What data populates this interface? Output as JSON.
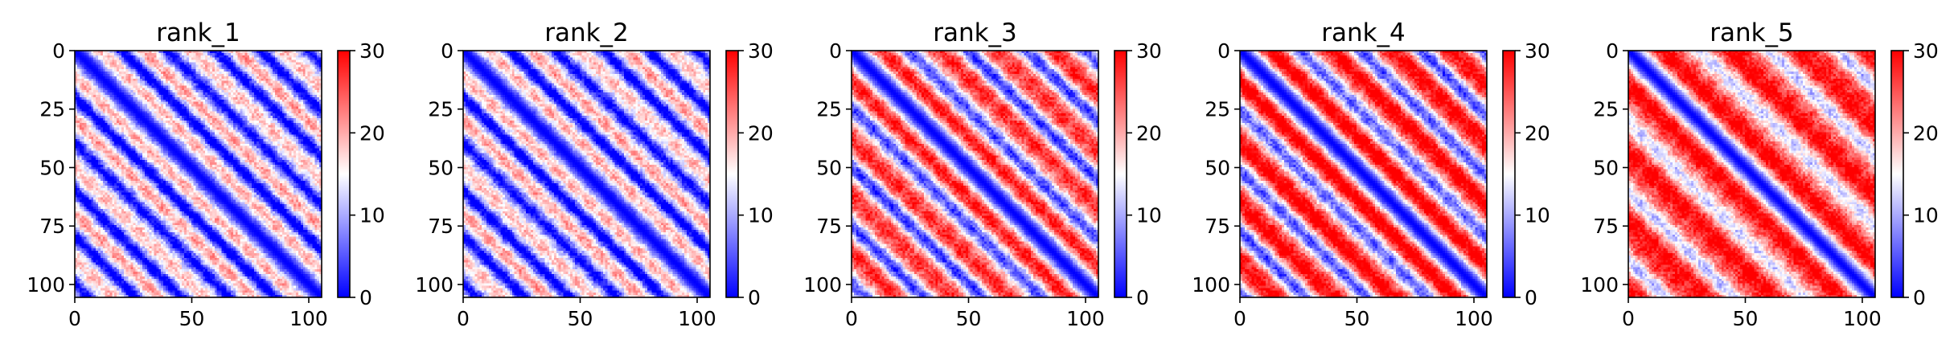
{
  "chart_data": [
    {
      "type": "heatmap",
      "title": "rank_1",
      "matrix_size": 106,
      "xticks": [
        0,
        50,
        100
      ],
      "yticks": [
        0,
        25,
        50,
        75,
        100
      ],
      "colorbar": {
        "min": 0,
        "max": 30,
        "ticks": [
          0,
          10,
          20,
          30
        ],
        "colors": [
          "#0000ff",
          "#ffffff",
          "#ff0000"
        ]
      },
      "pattern": {
        "period": 20,
        "stripe_width": 2.2,
        "diag_width": 3.5,
        "mean": 13,
        "amp": 6.5
      }
    },
    {
      "type": "heatmap",
      "title": "rank_2",
      "matrix_size": 106,
      "xticks": [
        0,
        50,
        100
      ],
      "yticks": [
        0,
        25,
        50,
        75,
        100
      ],
      "colorbar": {
        "min": 0,
        "max": 30,
        "ticks": [
          0,
          10,
          20,
          30
        ],
        "colors": [
          "#0000ff",
          "#ffffff",
          "#ff0000"
        ]
      },
      "pattern": {
        "period": 20,
        "stripe_width": 2.2,
        "diag_width": 3.5,
        "mean": 13,
        "amp": 6.5
      }
    },
    {
      "type": "heatmap",
      "title": "rank_3",
      "matrix_size": 106,
      "xticks": [
        0,
        50,
        100
      ],
      "yticks": [
        0,
        25,
        50,
        75,
        100
      ],
      "colorbar": {
        "min": 0,
        "max": 30,
        "ticks": [
          0,
          10,
          20,
          30
        ],
        "colors": [
          "#0000ff",
          "#ffffff",
          "#ff0000"
        ]
      },
      "pattern": {
        "period": 25,
        "stripe_width": 3.0,
        "diag_width": 4.0,
        "mean": 20,
        "amp": 8
      }
    },
    {
      "type": "heatmap",
      "title": "rank_4",
      "matrix_size": 106,
      "xticks": [
        0,
        50,
        100
      ],
      "yticks": [
        0,
        25,
        50,
        75,
        100
      ],
      "colorbar": {
        "min": 0,
        "max": 30,
        "ticks": [
          0,
          10,
          20,
          30
        ],
        "colors": [
          "#0000ff",
          "#ffffff",
          "#ff0000"
        ]
      },
      "pattern": {
        "period": 26,
        "stripe_width": 3.2,
        "diag_width": 4.0,
        "mean": 22,
        "amp": 9
      }
    },
    {
      "type": "heatmap",
      "title": "rank_5",
      "matrix_size": 106,
      "xticks": [
        0,
        50,
        100
      ],
      "yticks": [
        0,
        25,
        50,
        75,
        100
      ],
      "colorbar": {
        "min": 0,
        "max": 30,
        "ticks": [
          0,
          10,
          20,
          30
        ],
        "colors": [
          "#0000ff",
          "#ffffff",
          "#ff0000"
        ]
      },
      "pattern": {
        "period": 30,
        "stripe_width": 3.5,
        "diag_width": 4.5,
        "mean": 25,
        "amp": 5
      }
    }
  ]
}
